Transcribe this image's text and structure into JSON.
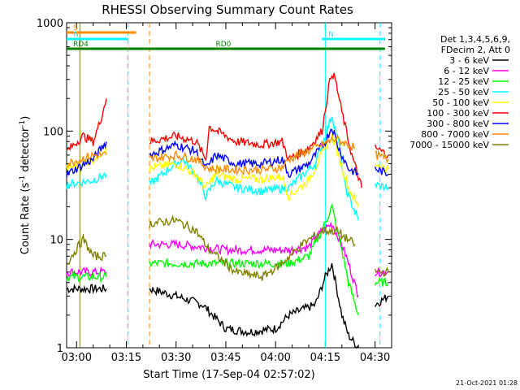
{
  "chart_data": {
    "type": "line",
    "title": "RHESSI Observing Summary Count Rates",
    "xlabel": "Start Time (17-Sep-04 02:57:02)",
    "ylabel": "Count Rate (s",
    "ylabel_sup1": "-1",
    "ylabel_mid": " detector",
    "ylabel_sup2": "-1",
    "ylabel_end": ")",
    "y_scale": "log",
    "ylim": [
      1,
      1000
    ],
    "xlim_minutes": [
      -3.0,
      95.0
    ],
    "x_ticks": [
      {
        "label": "03:00",
        "min": 0
      },
      {
        "label": "03:15",
        "min": 15
      },
      {
        "label": "03:30",
        "min": 30
      },
      {
        "label": "03:45",
        "min": 45
      },
      {
        "label": "04:00",
        "min": 60
      },
      {
        "label": "04:15",
        "min": 75
      },
      {
        "label": "04:30",
        "min": 90
      }
    ],
    "y_ticks": [
      {
        "label": "1",
        "v": 1
      },
      {
        "label": "10",
        "v": 10
      },
      {
        "label": "100",
        "v": 100
      },
      {
        "label": "1000",
        "v": 1000
      }
    ],
    "legend": {
      "header": [
        "Det 1,3,4,5,6,9,",
        "FDecim 2, Att 0"
      ],
      "placement": "right"
    },
    "series": [
      {
        "name": "3 - 6 keV",
        "color": "#000000",
        "x": [
          -3,
          9,
          18,
          22,
          30,
          38,
          45,
          52,
          60,
          64,
          72,
          75,
          77,
          80,
          82,
          85,
          88,
          90,
          94
        ],
        "y": [
          3.5,
          3.5,
          null,
          3.5,
          3.0,
          2.5,
          1.5,
          1.4,
          1.5,
          2.0,
          2.5,
          4.5,
          6.0,
          2.0,
          1.3,
          1.0,
          null,
          2.5,
          3.0
        ]
      },
      {
        "name": "6 - 12 keV",
        "color": "#ff00ff",
        "x": [
          -3,
          9,
          18,
          22,
          30,
          38,
          45,
          52,
          60,
          64,
          70,
          74,
          77,
          80,
          82,
          85,
          88,
          90,
          94
        ],
        "y": [
          5.0,
          5.0,
          null,
          9.0,
          9.0,
          8.5,
          8.0,
          8.0,
          8.0,
          8.0,
          8.5,
          12.0,
          14.0,
          9.0,
          6.0,
          3.0,
          null,
          5.0,
          5.0
        ]
      },
      {
        "name": "12 - 25 keV",
        "color": "#00ff00",
        "x": [
          -3,
          9,
          18,
          22,
          30,
          38,
          45,
          52,
          60,
          64,
          70,
          74,
          77,
          80,
          82,
          85,
          88,
          90,
          94
        ],
        "y": [
          4.5,
          4.5,
          null,
          6.0,
          6.0,
          6.0,
          6.0,
          6.0,
          6.0,
          6.0,
          7.0,
          12.0,
          20.0,
          8.0,
          4.0,
          2.0,
          null,
          4.0,
          4.0
        ]
      },
      {
        "name": "25 - 50 keV",
        "color": "#00ffff",
        "x": [
          -3,
          5,
          9,
          18,
          22,
          28,
          32,
          36,
          39,
          42,
          48,
          56,
          64,
          72,
          75,
          77,
          79,
          81,
          85,
          88,
          90,
          94
        ],
        "y": [
          32,
          35,
          40,
          null,
          32,
          45,
          55,
          40,
          25,
          35,
          30,
          28,
          30,
          50,
          90,
          140,
          80,
          30,
          15,
          null,
          32,
          30
        ]
      },
      {
        "name": "50 - 100 keV",
        "color": "#ffff00",
        "x": [
          -3,
          5,
          9,
          18,
          22,
          30,
          36,
          39,
          42,
          48,
          56,
          62,
          64,
          70,
          75,
          77,
          79,
          82,
          85,
          88,
          90,
          94
        ],
        "y": [
          45,
          55,
          70,
          null,
          45,
          50,
          40,
          30,
          40,
          36,
          36,
          38,
          25,
          35,
          70,
          90,
          60,
          30,
          20,
          null,
          50,
          45
        ]
      },
      {
        "name": "100 - 300 keV",
        "color": "#ff0000",
        "x": [
          -3,
          2,
          5,
          7,
          9,
          18,
          22,
          30,
          36,
          39,
          40,
          48,
          56,
          62,
          64,
          70,
          74,
          76,
          77,
          78,
          80,
          83,
          86,
          88,
          90,
          94
        ],
        "y": [
          65,
          90,
          80,
          120,
          200,
          null,
          80,
          90,
          80,
          55,
          110,
          80,
          75,
          80,
          55,
          70,
          100,
          250,
          350,
          300,
          150,
          60,
          30,
          null,
          70,
          60
        ]
      },
      {
        "name": "300 - 800 keV",
        "color": "#0000ff",
        "x": [
          -3,
          5,
          9,
          18,
          22,
          30,
          36,
          39,
          42,
          48,
          56,
          62,
          64,
          70,
          75,
          77,
          79,
          82,
          85,
          88,
          90,
          94
        ],
        "y": [
          40,
          55,
          80,
          null,
          60,
          75,
          65,
          45,
          60,
          50,
          50,
          55,
          40,
          50,
          80,
          110,
          70,
          45,
          40,
          null,
          45,
          40
        ]
      },
      {
        "name": "800 - 7000 keV",
        "color": "#ff8c00",
        "x": [
          -3,
          5,
          9,
          18,
          22,
          30,
          36,
          40,
          48,
          56,
          62,
          64,
          72,
          78,
          84,
          88,
          90,
          94
        ],
        "y": [
          50,
          60,
          60,
          null,
          55,
          60,
          55,
          45,
          44,
          44,
          46,
          55,
          70,
          85,
          70,
          null,
          60,
          55
        ]
      },
      {
        "name": "7000 - 15000 keV",
        "color": "#808000",
        "x": [
          -3,
          2,
          5,
          7,
          9,
          18,
          22,
          30,
          36,
          40,
          48,
          56,
          62,
          68,
          74,
          78,
          84,
          88,
          90,
          94
        ],
        "y": [
          6,
          10,
          7,
          7,
          7,
          null,
          14,
          15,
          12,
          8,
          5,
          4.5,
          6,
          9,
          12,
          12,
          9,
          null,
          5,
          5
        ]
      }
    ],
    "status_bars": [
      {
        "label": "S",
        "color": "#ff8c00",
        "x": [
          -3,
          18
        ]
      },
      {
        "label": "N",
        "color": "#00ffff",
        "x": [
          -3,
          15.5
        ]
      },
      {
        "label": "N",
        "color": "#00ffff",
        "x": [
          74,
          93
        ]
      },
      {
        "label": "RD4",
        "color": "#008000",
        "x": [
          -3,
          40
        ]
      },
      {
        "label": "RD0",
        "color": "#008000",
        "x": [
          40,
          93
        ]
      }
    ],
    "vlines": [
      {
        "min": 1.0,
        "color": "#808000",
        "dash": false
      },
      {
        "min": 15.5,
        "color": "#00ffff",
        "dash": true
      },
      {
        "min": 22.0,
        "color": "#ff8c00",
        "dash": true
      },
      {
        "min": 75.0,
        "color": "#00ffff",
        "dash": false
      },
      {
        "min": 91.5,
        "color": "#00ffff",
        "dash": true
      }
    ]
  },
  "footer": {
    "timestamp": "21-Oct-2021 01:28"
  }
}
